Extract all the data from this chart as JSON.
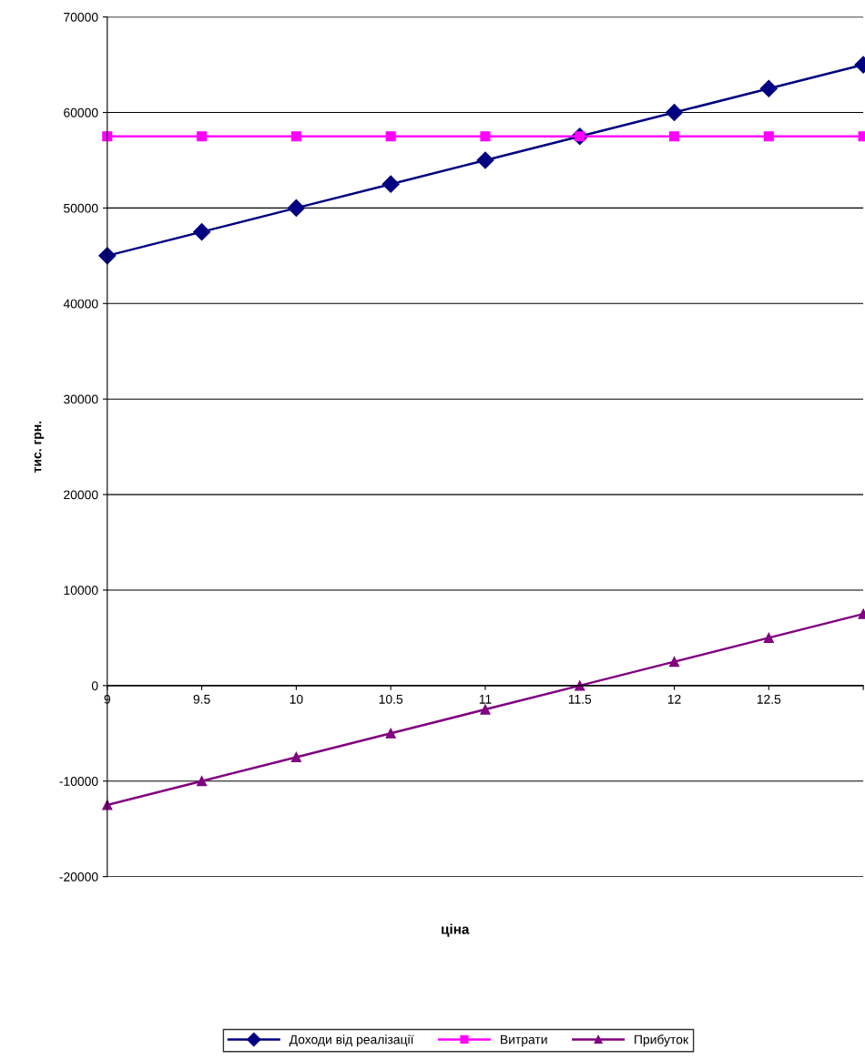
{
  "chart_data": {
    "type": "line",
    "xlabel": "ціна",
    "ylabel": "тис. грн.",
    "categories": [
      "9",
      "9.5",
      "10",
      "10.5",
      "11",
      "11.5",
      "12",
      "12.5",
      null
    ],
    "series": [
      {
        "name": "Доходи від реалізації",
        "color": "#000080",
        "marker": "diamond",
        "values": [
          45000,
          47500,
          50000,
          52500,
          55000,
          57500,
          60000,
          62500,
          65000
        ]
      },
      {
        "name": "Витрати",
        "color": "#ff00ff",
        "marker": "square",
        "values": [
          57500,
          57500,
          57500,
          57500,
          57500,
          57500,
          57500,
          57500,
          57500
        ]
      },
      {
        "name": "Прибуток",
        "color": "#800080",
        "marker": "triangle",
        "values": [
          -12500,
          -10000,
          -7500,
          -5000,
          -2500,
          0,
          2500,
          5000,
          7500
        ]
      }
    ],
    "ylim": [
      -20000,
      70000
    ],
    "yticks": [
      -20000,
      -10000,
      0,
      10000,
      20000,
      30000,
      40000,
      50000,
      60000,
      70000
    ],
    "grid": "y",
    "legend": "bottom"
  }
}
